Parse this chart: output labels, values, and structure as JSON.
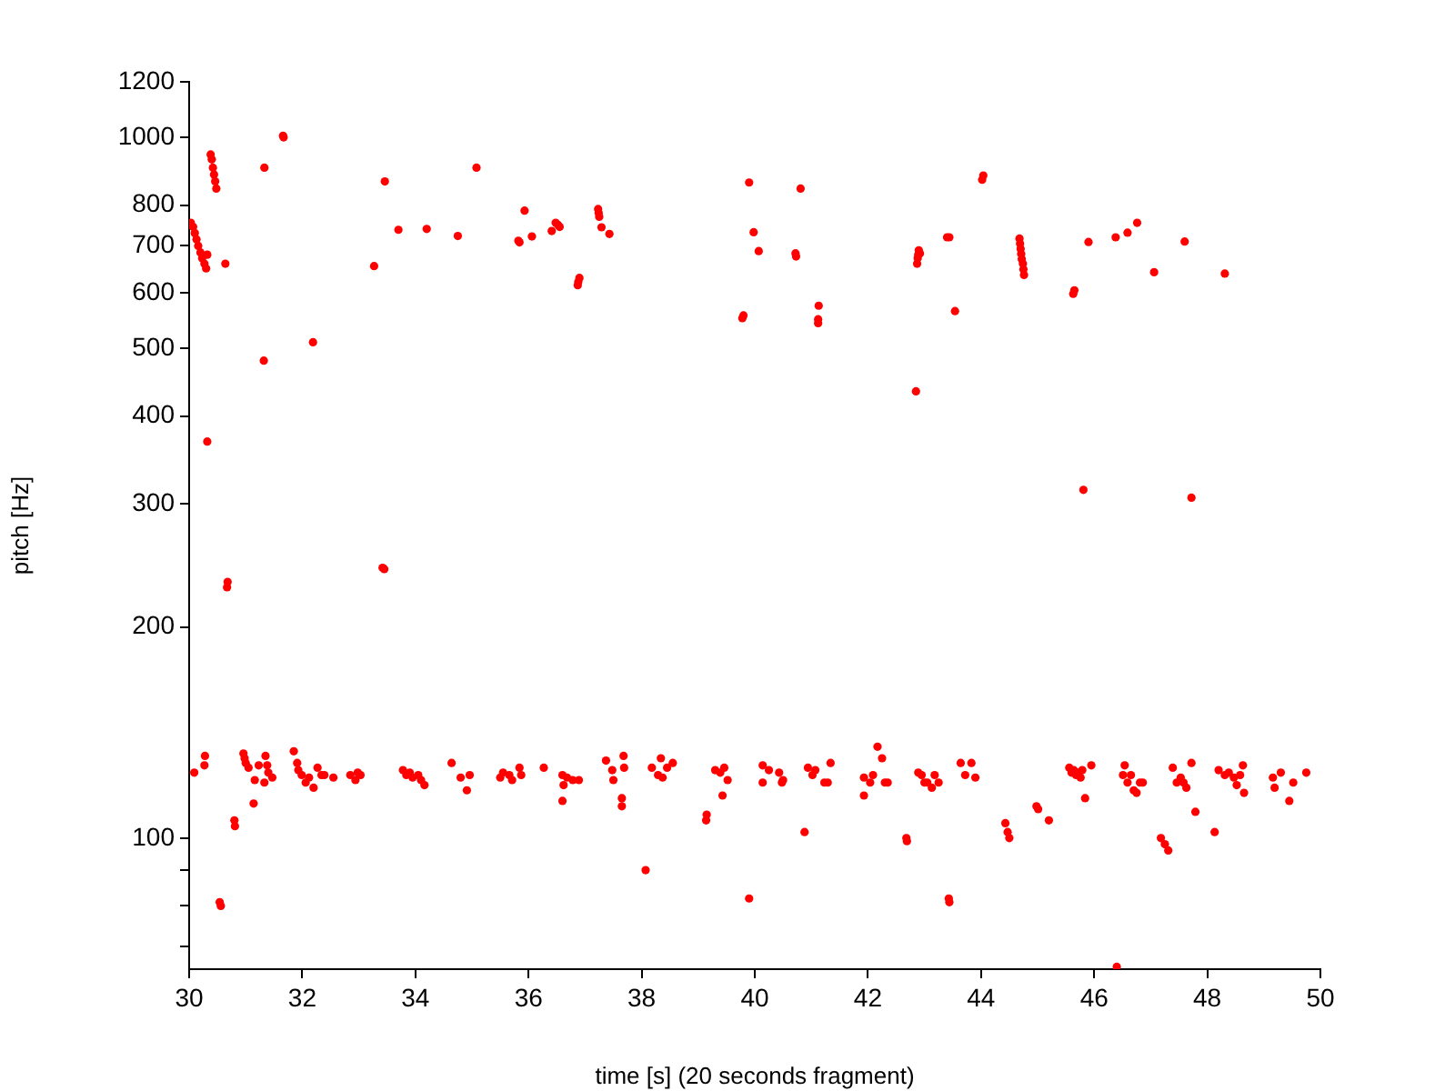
{
  "chart_data": {
    "type": "scatter",
    "xlabel": "time [s] (20 seconds fragment)",
    "ylabel": "pitch [Hz]",
    "color": "#ff0000",
    "marker": "circle",
    "log": "y",
    "grid": false,
    "xlim": [
      30,
      50
    ],
    "ylim": [
      65,
      1200
    ],
    "xticks": [
      30,
      32,
      34,
      36,
      38,
      40,
      42,
      44,
      46,
      48,
      50
    ],
    "yticks": [
      {
        "value": 70,
        "label": null
      },
      {
        "value": 80,
        "label": null
      },
      {
        "value": 90,
        "label": null
      },
      100,
      200,
      300,
      400,
      500,
      600,
      700,
      800,
      1000,
      1200
    ],
    "x": [
      30.03,
      30.07,
      30.1,
      30.13,
      30.16,
      30.2,
      30.23,
      30.27,
      30.3,
      30.32,
      30.38,
      30.4,
      30.42,
      30.44,
      30.46,
      30.48,
      30.64,
      31.33,
      31.66,
      31.67,
      31.32,
      32.19,
      30.32,
      30.67,
      30.68,
      33.42,
      33.45,
      33.27,
      33.46,
      33.7,
      34.2,
      34.75,
      35.08,
      35.82,
      35.84,
      35.93,
      36.06,
      36.41,
      36.48,
      36.52,
      36.55,
      36.87,
      36.88,
      36.9,
      37.23,
      37.24,
      37.25,
      37.29,
      37.43,
      39.78,
      39.8,
      39.9,
      39.98,
      40.07,
      40.81,
      40.72,
      40.73,
      41.13,
      41.12,
      41.12,
      44.02,
      44.04,
      42.87,
      42.88,
      42.89,
      42.9,
      42.92,
      43.4,
      43.44,
      43.54,
      42.85,
      44.68,
      44.69,
      44.7,
      44.71,
      44.72,
      44.74,
      44.75,
      44.76,
      45.63,
      45.65,
      45.9,
      46.38,
      46.59,
      46.76,
      47.06,
      47.6,
      48.31,
      45.81,
      47.72,
      30.09,
      30.28,
      30.27,
      30.54,
      30.56,
      30.8,
      30.81,
      30.96,
      30.98,
      31.0,
      31.05,
      31.14,
      31.16,
      31.23,
      31.35,
      31.38,
      31.4,
      31.33,
      31.47,
      31.85,
      31.91,
      31.93,
      31.99,
      32.06,
      32.12,
      32.2,
      32.27,
      32.34,
      32.39,
      32.55,
      32.85,
      32.94,
      32.98,
      33.03,
      33.78,
      33.84,
      33.9,
      33.95,
      34.05,
      34.1,
      34.16,
      34.64,
      34.8,
      34.91,
      34.96,
      35.5,
      35.55,
      35.66,
      35.71,
      35.84,
      35.87,
      36.27,
      36.6,
      36.62,
      36.6,
      36.68,
      36.78,
      36.89,
      37.37,
      37.48,
      37.5,
      37.65,
      37.65,
      37.69,
      37.68,
      38.07,
      38.18,
      38.29,
      38.34,
      38.37,
      38.45,
      38.55,
      39.14,
      39.15,
      39.3,
      39.39,
      39.46,
      39.52,
      39.43,
      39.9,
      40.14,
      40.14,
      40.25,
      40.43,
      40.48,
      40.5,
      40.88,
      40.94,
      41.02,
      41.07,
      41.23,
      41.29,
      41.34,
      41.93,
      41.93,
      42.04,
      42.09,
      42.17,
      42.25,
      42.3,
      42.35,
      42.89,
      42.95,
      43.0,
      43.05,
      43.13,
      43.18,
      43.25,
      42.68,
      42.69,
      43.43,
      43.44,
      43.64,
      43.72,
      43.83,
      43.9,
      44.43,
      44.47,
      44.5,
      44.98,
      45.01,
      45.2,
      45.56,
      45.6,
      45.64,
      45.68,
      45.72,
      45.76,
      45.79,
      45.84,
      45.95,
      46.4,
      46.54,
      46.51,
      46.59,
      46.65,
      46.7,
      46.75,
      46.81,
      46.86,
      47.18,
      47.25,
      47.31,
      47.39,
      47.46,
      47.53,
      47.58,
      47.63,
      47.72,
      47.79,
      48.13,
      48.2,
      48.31,
      48.38,
      48.47,
      48.52,
      48.58,
      48.63,
      48.65,
      49.16,
      49.19,
      49.3,
      49.45,
      49.52,
      49.75
    ],
    "values": [
      755,
      745,
      730,
      715,
      700,
      685,
      672,
      660,
      650,
      680,
      945,
      930,
      905,
      885,
      865,
      845,
      660,
      905,
      1005,
      1000,
      480,
      510,
      368,
      228,
      232,
      243,
      242,
      655,
      865,
      738,
      740,
      723,
      905,
      712,
      708,
      786,
      722,
      735,
      755,
      750,
      745,
      615,
      622,
      630,
      790,
      780,
      770,
      744,
      728,
      552,
      557,
      862,
      732,
      688,
      845,
      683,
      676,
      575,
      550,
      543,
      870,
      882,
      660,
      672,
      680,
      690,
      683,
      720,
      720,
      565,
      434,
      717,
      705,
      693,
      682,
      670,
      660,
      648,
      636,
      598,
      605,
      709,
      720,
      731,
      755,
      642,
      710,
      639,
      314,
      306,
      124,
      131,
      127,
      81,
      80,
      106,
      104,
      132,
      130,
      128,
      126,
      112,
      121,
      127,
      131,
      127,
      124,
      120,
      122,
      133,
      128,
      125,
      123,
      120,
      122,
      118,
      126,
      123,
      123,
      122,
      123,
      121,
      124,
      123,
      125,
      123,
      124,
      122,
      123,
      121,
      119,
      128,
      122,
      117,
      123,
      122,
      124,
      123,
      121,
      126,
      123,
      126,
      123,
      119,
      113,
      122,
      121,
      121,
      129,
      125,
      121,
      114,
      111,
      126,
      131,
      90,
      126,
      123,
      130,
      122,
      126,
      128,
      106,
      108,
      125,
      124,
      126,
      121,
      115,
      82,
      127,
      120,
      125,
      124,
      120,
      121,
      102,
      126,
      123,
      125,
      120,
      120,
      128,
      122,
      115,
      120,
      123,
      135,
      130,
      120,
      120,
      124,
      123,
      120,
      120,
      118,
      123,
      120,
      100,
      99,
      82,
      81,
      128,
      123,
      128,
      122,
      105,
      102,
      100,
      111,
      110,
      106,
      126,
      124,
      125,
      123,
      124,
      122,
      125,
      114,
      127,
      65.5,
      127,
      123,
      120,
      123,
      117,
      116,
      120,
      120,
      100,
      98,
      96,
      126,
      120,
      122,
      120,
      118,
      128,
      109,
      102,
      125,
      123,
      124,
      122,
      119,
      123,
      127,
      116,
      122,
      118,
      124,
      113,
      120,
      124
    ]
  }
}
